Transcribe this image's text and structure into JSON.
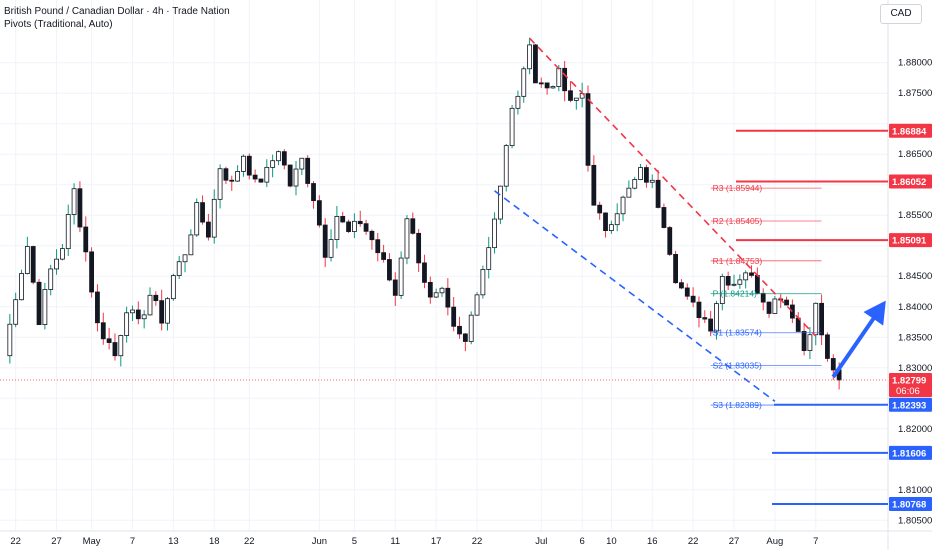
{
  "header": {
    "title": "British Pound / Canadian Dollar · 4h · Trade Nation",
    "subtitle": "Pivots (Traditional, Auto)",
    "currency": "CAD"
  },
  "chart_data": {
    "type": "candlestick",
    "symbol": "GBPCAD",
    "timeframe": "4h",
    "ylim": [
      1.80341,
      1.88667
    ],
    "y_ticks": [
      1.805,
      1.81,
      1.815,
      1.82,
      1.825,
      1.83,
      1.835,
      1.84,
      1.845,
      1.85,
      1.855,
      1.86,
      1.865,
      1.87,
      1.875,
      1.88
    ],
    "y_tick_labels": [
      "1.80500",
      "1.81000",
      "1.81500",
      "1.82000",
      "1.82500",
      "1.83000",
      "1.83500",
      "1.84000",
      "1.84500",
      "1.85000",
      "1.85500",
      "1.86000",
      "1.86500",
      "1.87000",
      "1.87500",
      "1.88000"
    ],
    "x_ticks": [
      {
        "label": "22",
        "index": 2
      },
      {
        "label": "27",
        "index": 9
      },
      {
        "label": "May",
        "index": 15
      },
      {
        "label": "7",
        "index": 22
      },
      {
        "label": "13",
        "index": 29
      },
      {
        "label": "18",
        "index": 36
      },
      {
        "label": "22",
        "index": 42
      },
      {
        "label": "Jun",
        "index": 54
      },
      {
        "label": "5",
        "index": 60
      },
      {
        "label": "11",
        "index": 67
      },
      {
        "label": "17",
        "index": 74
      },
      {
        "label": "22",
        "index": 81
      },
      {
        "label": "Jul",
        "index": 92
      },
      {
        "label": "6",
        "index": 99
      },
      {
        "label": "10",
        "index": 104
      },
      {
        "label": "16",
        "index": 111
      },
      {
        "label": "22",
        "index": 118
      },
      {
        "label": "27",
        "index": 125
      },
      {
        "label": "Aug",
        "index": 132
      },
      {
        "label": "7",
        "index": 139
      }
    ],
    "x_slots": 152,
    "candles_anchor": [
      [
        0,
        1.832
      ],
      [
        2,
        1.842
      ],
      [
        4,
        1.85
      ],
      [
        6,
        1.838
      ],
      [
        8,
        1.846
      ],
      [
        10,
        1.85
      ],
      [
        12,
        1.859
      ],
      [
        14,
        1.849
      ],
      [
        16,
        1.837
      ],
      [
        18,
        1.834
      ],
      [
        19,
        1.832
      ],
      [
        21,
        1.84
      ],
      [
        23,
        1.837
      ],
      [
        25,
        1.842
      ],
      [
        27,
        1.838
      ],
      [
        29,
        1.845
      ],
      [
        31,
        1.849
      ],
      [
        33,
        1.856
      ],
      [
        35,
        1.852
      ],
      [
        37,
        1.863
      ],
      [
        39,
        1.86
      ],
      [
        41,
        1.865
      ],
      [
        43,
        1.86
      ],
      [
        45,
        1.862
      ],
      [
        47,
        1.866
      ],
      [
        49,
        1.86
      ],
      [
        51,
        1.864
      ],
      [
        53,
        1.858
      ],
      [
        55,
        1.849
      ],
      [
        57,
        1.855
      ],
      [
        59,
        1.852
      ],
      [
        61,
        1.854
      ],
      [
        63,
        1.851
      ],
      [
        65,
        1.847
      ],
      [
        67,
        1.842
      ],
      [
        69,
        1.855
      ],
      [
        71,
        1.848
      ],
      [
        73,
        1.841
      ],
      [
        75,
        1.842
      ],
      [
        77,
        1.836
      ],
      [
        79,
        1.834
      ],
      [
        81,
        1.843
      ],
      [
        83,
        1.85
      ],
      [
        85,
        1.86
      ],
      [
        87,
        1.872
      ],
      [
        89,
        1.878
      ],
      [
        90,
        1.884
      ],
      [
        91,
        1.877
      ],
      [
        93,
        1.876
      ],
      [
        95,
        1.878
      ],
      [
        97,
        1.873
      ],
      [
        99,
        1.875
      ],
      [
        100,
        1.864
      ],
      [
        101,
        1.856
      ],
      [
        103,
        1.853
      ],
      [
        105,
        1.856
      ],
      [
        107,
        1.859
      ],
      [
        109,
        1.862
      ],
      [
        111,
        1.86
      ],
      [
        113,
        1.854
      ],
      [
        115,
        1.845
      ],
      [
        117,
        1.841
      ],
      [
        119,
        1.839
      ],
      [
        121,
        1.837
      ],
      [
        123,
        1.845
      ],
      [
        125,
        1.844
      ],
      [
        127,
        1.846
      ],
      [
        129,
        1.843
      ],
      [
        131,
        1.84
      ],
      [
        133,
        1.842
      ],
      [
        135,
        1.839
      ],
      [
        137,
        1.833
      ],
      [
        139,
        1.84
      ],
      [
        141,
        1.831
      ],
      [
        142,
        1.83
      ],
      [
        143,
        1.828
      ]
    ],
    "last_price": 1.82799,
    "last_price_label": "1.82799",
    "countdown": "06:06",
    "pivots": [
      {
        "name": "R3",
        "label": "R3 (1.85944)",
        "value": 1.85944,
        "color": "#f23645"
      },
      {
        "name": "R2",
        "label": "R2 (1.85405)",
        "value": 1.85405,
        "color": "#f23645"
      },
      {
        "name": "R1",
        "label": "R1 (1.84753)",
        "value": 1.84753,
        "color": "#f23645"
      },
      {
        "name": "P",
        "label": "P (1.84214)",
        "value": 1.84214,
        "color": "#089981"
      },
      {
        "name": "S1",
        "label": "S1 (1.83574)",
        "value": 1.83574,
        "color": "#2962ff"
      },
      {
        "name": "S2",
        "label": "S2 (1.83035)",
        "value": 1.83035,
        "color": "#2962ff"
      },
      {
        "name": "S3",
        "label": "S3 (1.82389)",
        "value": 1.82389,
        "color": "#2962ff"
      }
    ],
    "resistance_levels": [
      {
        "value": 1.86884,
        "label": "1.86884"
      },
      {
        "value": 1.86052,
        "label": "1.86052"
      },
      {
        "value": 1.85091,
        "label": "1.85091"
      }
    ],
    "support_levels": [
      {
        "value": 1.82393,
        "label": "1.82393"
      },
      {
        "value": 1.81606,
        "label": "1.81606"
      },
      {
        "value": 1.80768,
        "label": "1.80768"
      }
    ],
    "trendlines": [
      {
        "name": "upper-channel",
        "color": "#f23645",
        "from": [
          90,
          1.884
        ],
        "to": [
          139,
          1.8352
        ]
      },
      {
        "name": "lower-channel",
        "color": "#2962ff",
        "from": [
          84,
          1.859
        ],
        "to": [
          132,
          1.8245
        ]
      }
    ],
    "arrow": {
      "color": "#2962ff",
      "from": [
        142,
        1.8285
      ],
      "to": [
        151,
        1.841
      ]
    },
    "colors": {
      "up": "#089981",
      "down": "#f23645",
      "wick": "#131722",
      "up_body": "#ffffff",
      "down_body": "#131722"
    }
  }
}
